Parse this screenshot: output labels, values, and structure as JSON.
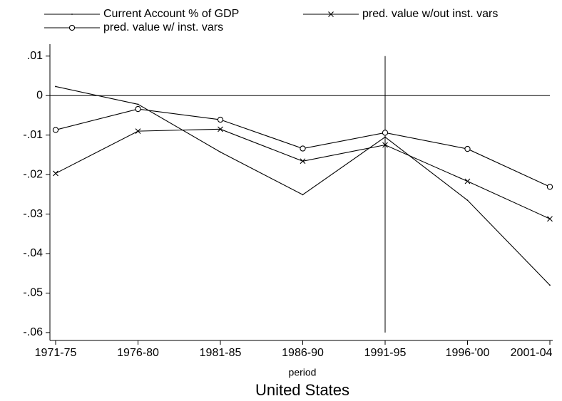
{
  "chart_data": {
    "type": "line",
    "x_label": "period",
    "title": "United States",
    "categories": [
      "1971-75",
      "1976-80",
      "1981-85",
      "1986-90",
      "1991-95",
      "1996-'00",
      "2001-04"
    ],
    "series": [
      {
        "name": "Current Account % of GDP",
        "color": "#000000",
        "marker": "dot",
        "values": [
          0.0023,
          -0.0022,
          -0.0143,
          -0.0251,
          -0.0105,
          -0.0265,
          -0.048
        ]
      },
      {
        "name": "pred. value w/out inst. vars",
        "color": "#000000",
        "marker": "x",
        "values": [
          -0.0197,
          -0.009,
          -0.0085,
          -0.0166,
          -0.0125,
          -0.0217,
          -0.0312
        ]
      },
      {
        "name": "pred. value w/ inst. vars",
        "color": "#000000",
        "marker": "circle",
        "values": [
          -0.0087,
          -0.0034,
          -0.0061,
          -0.0134,
          -0.0094,
          -0.0135,
          -0.0231
        ]
      }
    ],
    "ylim": [
      -0.062,
      0.0123
    ],
    "yticks": [
      {
        "value": 0.01,
        "label": ".01"
      },
      0,
      {
        "value": -0.01,
        "label": "-.01"
      },
      {
        "value": -0.02,
        "label": "-.02"
      },
      {
        "value": -0.03,
        "label": "-.03"
      },
      {
        "value": -0.04,
        "label": "-.04"
      },
      {
        "value": -0.05,
        "label": "-.05"
      },
      {
        "value": -0.06,
        "label": "-.06"
      }
    ],
    "yline": 0,
    "xline": "1991-95",
    "legend": "top"
  }
}
